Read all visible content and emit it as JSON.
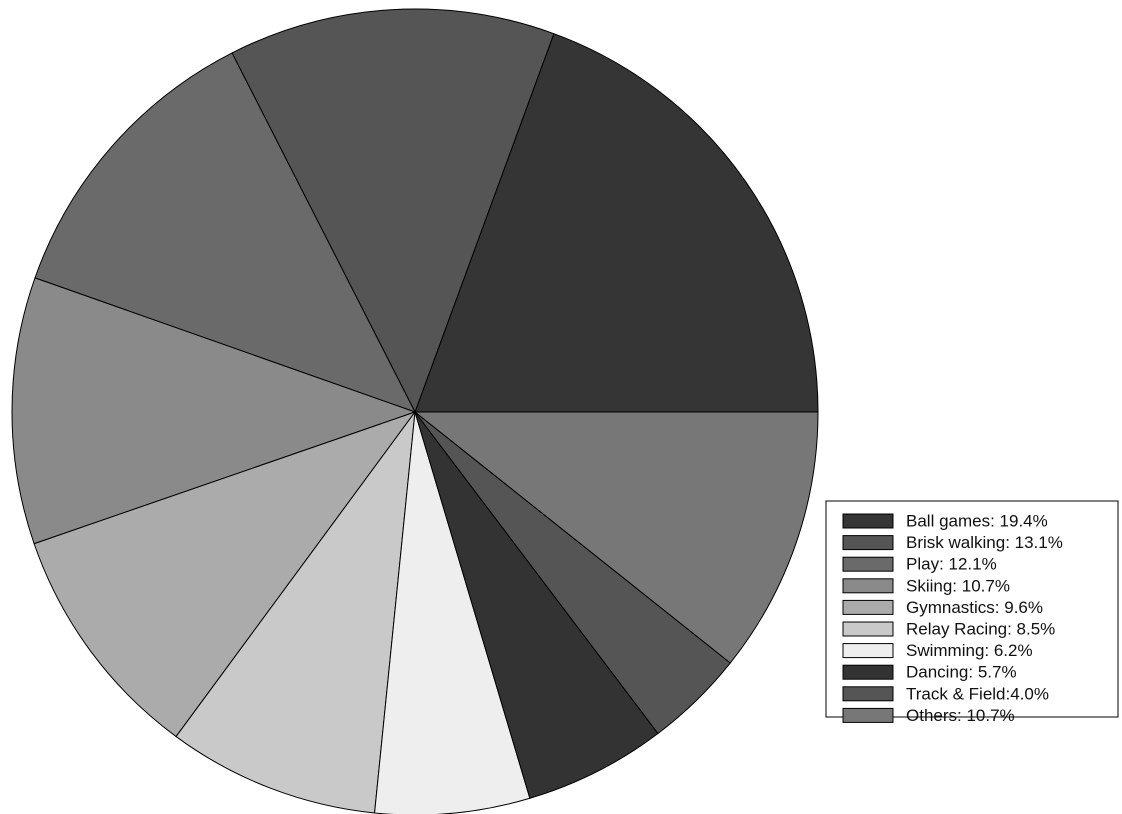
{
  "chart_data": {
    "type": "pie",
    "values": [
      19.4,
      13.1,
      12.1,
      10.7,
      9.6,
      8.5,
      6.2,
      5.7,
      4.0,
      10.7
    ],
    "value_labels": [
      "Ball games: 19.4%",
      "Brisk walking: 13.1%",
      "Play: 12.1%",
      "Skiing: 10.7%",
      "Gymnastics: 9.6%",
      "Relay Racing: 8.5%",
      "Swimming: 6.2%",
      "Dancing: 5.7%",
      "Track & Field:4.0%",
      "Others: 10.7%"
    ],
    "colors": [
      "#353535",
      "#555555",
      "#6a6a6a",
      "#8a8a8a",
      "#ababab",
      "#c9c9c9",
      "#eeeeee",
      "#333333",
      "#555555",
      "#777777"
    ],
    "legend": "right"
  }
}
